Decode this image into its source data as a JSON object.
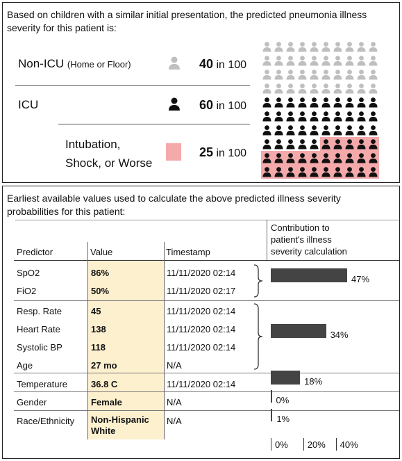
{
  "top_panel": {
    "intro_line1": "Based on children with a similar initial presentation, the predicted pneumonia illness",
    "intro_line2": "severity for this patient is:",
    "rows": [
      {
        "label": "Non-ICU",
        "sublabel": "(Home or Floor)",
        "count": "40",
        "unit": "in 100",
        "icon_color": "#bfbfbf"
      },
      {
        "label": "ICU",
        "sublabel": "",
        "count": "60",
        "unit": "in 100",
        "icon_color": "#111111"
      },
      {
        "label_line1": "Intubation,",
        "label_line2": "Shock, or Worse",
        "count": "25",
        "unit": "in 100",
        "icon_color": "#f4a9ab"
      }
    ],
    "icon_array": {
      "total": 100,
      "non_icu": 40,
      "icu": 60,
      "intubation": 25,
      "columns": 10
    }
  },
  "bottom_panel": {
    "intro_line1": "Earliest available values used to calculate the above predicted illness severity",
    "intro_line2": "probabilities for this patient:",
    "headers": {
      "predictor": "Predictor",
      "value": "Value",
      "timestamp": "Timestamp",
      "contribution_line1": "Contribution to",
      "contribution_line2": "patient's illness",
      "contribution_line3": "severity calculation"
    },
    "rows": [
      {
        "predictor": "SpO2",
        "value": "86%",
        "timestamp": "11/11/2020 02:14"
      },
      {
        "predictor": "FiO2",
        "value": "50%",
        "timestamp": "11/11/2020 02:17"
      },
      {
        "predictor": "Resp. Rate",
        "value": "45",
        "timestamp": "11/11/2020 02:14"
      },
      {
        "predictor": "Heart Rate",
        "value": "138",
        "timestamp": "11/11/2020 02:14"
      },
      {
        "predictor": "Systolic BP",
        "value": "118",
        "timestamp": "11/11/2020 02:14"
      },
      {
        "predictor": "Age",
        "value": "27 mo",
        "timestamp": "N/A"
      },
      {
        "predictor": "Temperature",
        "value": "36.8 C",
        "timestamp": "11/11/2020 02:14"
      },
      {
        "predictor": "Gender",
        "value": "Female",
        "timestamp": "N/A"
      },
      {
        "predictor": "Race/Ethnicity",
        "value_line1": "Non-Hispanic",
        "value_line2": "White",
        "timestamp": "N/A"
      }
    ],
    "contributions": [
      {
        "group": "SpO2, FiO2",
        "percent": 47,
        "label": "47%"
      },
      {
        "group": "Resp. Rate, Heart Rate, Systolic BP, Age",
        "percent": 34,
        "label": "34%"
      },
      {
        "group": "Temperature",
        "percent": 18,
        "label": "18%"
      },
      {
        "group": "Gender",
        "percent": 0,
        "label": "0%"
      },
      {
        "group": "Race/Ethnicity",
        "percent": 1,
        "label": "1%"
      }
    ],
    "axis_labels": [
      "0%",
      "20%",
      "40%"
    ],
    "highlight_color": "#fdf0cf",
    "bar_color": "#444444"
  }
}
